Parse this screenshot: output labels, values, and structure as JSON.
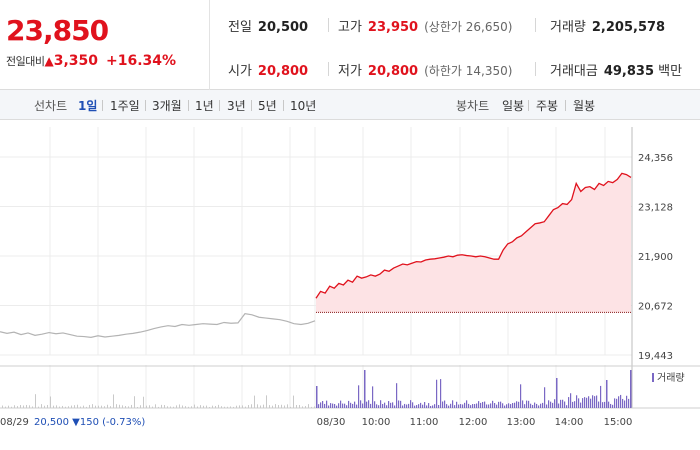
{
  "summary": {
    "price": "23,850",
    "change_label": "전일대비",
    "change_icon": "up-triangle-icon",
    "change_amount": "3,350",
    "change_pct": "+16.34%",
    "prev_close_label": "전일",
    "prev_close": "20,500",
    "high_label": "고가",
    "high": "23,950",
    "upper_limit_label": "상한가",
    "upper_limit": "26,650",
    "volume_label": "거래량",
    "volume": "2,205,578",
    "open_label": "시가",
    "open": "20,800",
    "low_label": "저가",
    "low": "20,800",
    "lower_limit_label": "하한가",
    "lower_limit": "14,350",
    "amount_label": "거래대금",
    "amount": "49,835",
    "amount_unit": "백만"
  },
  "tabs": {
    "line_label": "선차트",
    "line_tabs": [
      "1일",
      "1주일",
      "3개월",
      "1년",
      "3년",
      "5년",
      "10년"
    ],
    "active": "1일",
    "candle_label": "봉차트",
    "candle_tabs": [
      "일봉",
      "주봉",
      "월봉"
    ]
  },
  "chart_data": {
    "type": "line",
    "ylim": [
      19443,
      24356
    ],
    "y_ticks": [
      "24,356",
      "23,128",
      "21,900",
      "20,672",
      "19,443"
    ],
    "y_tick_values": [
      24356,
      23128,
      21900,
      20672,
      19443
    ],
    "x_ticks": [
      "08/29",
      "08/30",
      "10:00",
      "11:00",
      "12:00",
      "13:00",
      "14:00",
      "15:00"
    ],
    "reference_price": 20500,
    "prev_day_label": "08/29",
    "prev_day_close": "20,500",
    "prev_day_change": "▼150",
    "prev_day_pct": "(-0.73%)",
    "volume_legend": "거래량",
    "colors": {
      "up": "#e0121d",
      "fill": "#fde3e5",
      "prev": "#b3b3b3",
      "volume": "#7a68c4"
    },
    "series": [
      {
        "values": [
          20020,
          19980,
          20010,
          19950,
          19990,
          19930,
          19960,
          20000,
          19970,
          19990,
          19950,
          19910,
          19900,
          19880,
          19920,
          19890,
          19910,
          19930,
          19960,
          19980,
          20010,
          20050,
          20100,
          20140,
          20170,
          20150,
          20200,
          20180,
          20200,
          20220,
          20210,
          20200,
          20250,
          20230,
          20240,
          20470,
          20440,
          20380,
          20360,
          20340,
          20320,
          20280,
          20220,
          20200,
          20230,
          20290
        ]
      },
      {
        "values": [
          20850,
          21020,
          20980,
          21150,
          21100,
          21220,
          21180,
          21300,
          21250,
          21400,
          21350,
          21380,
          21430,
          21400,
          21450,
          21550,
          21520,
          21600,
          21650,
          21700,
          21680,
          21720,
          21760,
          21750,
          21800,
          21820,
          21830,
          21850,
          21870,
          21900,
          21880,
          21920,
          21930,
          21910,
          21900,
          21880,
          21900,
          21880,
          21850,
          21820,
          21820,
          22050,
          22200,
          22250,
          22350,
          22400,
          22500,
          22600,
          22700,
          22720,
          22750,
          22900,
          23050,
          23100,
          23200,
          23180,
          23300,
          23700,
          23500,
          23600,
          23620,
          23550,
          23700,
          23650,
          23750,
          23720,
          23800,
          23950,
          23920,
          23850
        ]
      }
    ]
  }
}
